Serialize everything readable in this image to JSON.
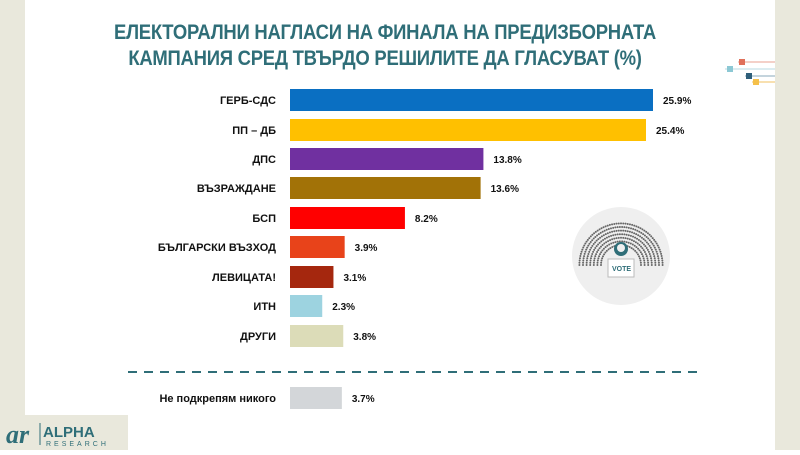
{
  "title": [
    "ЕЛЕКТОРАЛНИ НАГЛАСИ НА ФИНАЛА НА ПРЕДИЗБОРНАТА",
    "КАМПАНИЯ СРЕД ТВЪРДО РЕШИЛИТЕ ДА ГЛАСУВАТ (%)"
  ],
  "chart_data": {
    "type": "bar",
    "orientation": "horizontal",
    "title": "ЕЛЕКТОРАЛНИ НАГЛАСИ НА ФИНАЛА НА ПРЕДИЗБОРНАТА КАМПАНИЯ СРЕД ТВЪРДО РЕШИЛИТЕ ДА ГЛАСУВАТ (%)",
    "categories": [
      "ГЕРБ-СДС",
      "ПП – ДБ",
      "ДПС",
      "ВЪЗРАЖДАНЕ",
      "БСП",
      "БЪЛГАРСКИ ВЪЗХОД",
      "ЛЕВИЦАТА!",
      "ИТН",
      "ДРУГИ"
    ],
    "values": [
      25.9,
      25.4,
      13.8,
      13.6,
      8.2,
      3.9,
      3.1,
      2.3,
      3.8
    ],
    "labels": [
      "25.9%",
      "25.4%",
      "13.8%",
      "13.6%",
      "8.2%",
      "3.9%",
      "3.1%",
      "2.3%",
      "3.8%"
    ],
    "colors": [
      "#0a6fc2",
      "#ffc000",
      "#7030a0",
      "#a27207",
      "#ff0000",
      "#e8431a",
      "#a5270e",
      "#9dd3e0",
      "#dcdcb8"
    ],
    "separate": {
      "category": "Не подкрепям никого",
      "value": 3.7,
      "label": "3.7%",
      "color": "#d3d6d9"
    },
    "xlim": [
      0,
      26
    ],
    "grid": false
  },
  "logo": {
    "text": "ALPHA RESEARCH"
  },
  "colors": {
    "title": "#2f6e78",
    "band": "#e9e8dc",
    "separator": "#2f6e78"
  }
}
